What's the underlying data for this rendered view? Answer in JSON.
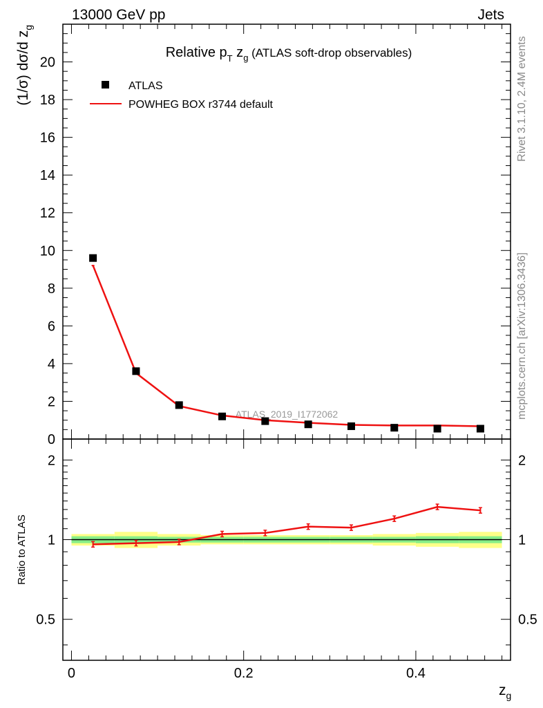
{
  "header": {
    "left": "13000 GeV pp",
    "right": "Jets"
  },
  "side_text": {
    "rivet": "Rivet 3.1.10,  2.4M events",
    "mcplots": "mcplots.cern.ch [arXiv:1306.3436]"
  },
  "watermark": "ATLAS_2019_I1772062",
  "colors": {
    "data": "#000000",
    "mc": "#ee1111",
    "band_inner": "#88ee88",
    "band_outer": "#ffff88",
    "watermark": "#999999",
    "side_text": "#888888"
  },
  "chart_data": {
    "type": "scatter",
    "title": {
      "main": "Relative p",
      "sub_T": "T",
      "mid": " z",
      "sub_g": "g",
      "rest": " (ATLAS soft-drop observables)"
    },
    "ylabel": {
      "main": "(1/σ) dσ/d z",
      "sub": "g"
    },
    "xlabel": {
      "main": "z",
      "sub": "g"
    },
    "ratio_ylabel": "Ratio to ATLAS",
    "xlim": [
      -0.01,
      0.51
    ],
    "ylim": [
      0,
      22
    ],
    "ratio_ylim": [
      0.35,
      2.4
    ],
    "x_ticks": [
      "0",
      "0.2",
      "0.4"
    ],
    "x_tick_values": [
      0,
      0.2,
      0.4
    ],
    "y_ticks": [
      "0",
      "2",
      "4",
      "6",
      "8",
      "10",
      "12",
      "14",
      "16",
      "18",
      "20"
    ],
    "y_tick_values": [
      0,
      2,
      4,
      6,
      8,
      10,
      12,
      14,
      16,
      18,
      20
    ],
    "ratio_ticks": [
      "0.5",
      "1",
      "2"
    ],
    "ratio_tick_values": [
      0.5,
      1,
      2
    ],
    "bins": [
      0,
      0.05,
      0.1,
      0.15,
      0.2,
      0.25,
      0.3,
      0.35,
      0.4,
      0.45,
      0.5
    ],
    "x": [
      0.025,
      0.075,
      0.125,
      0.175,
      0.225,
      0.275,
      0.325,
      0.375,
      0.425,
      0.475
    ],
    "legend": [
      "ATLAS",
      "POWHEG BOX r3744 default"
    ],
    "series": [
      {
        "name": "ATLAS",
        "values": [
          9.6,
          3.6,
          1.8,
          1.2,
          0.95,
          0.78,
          0.68,
          0.6,
          0.55,
          0.55
        ]
      },
      {
        "name": "POWHEG BOX r3744 default",
        "values": [
          9.2,
          3.5,
          1.75,
          1.25,
          1.0,
          0.86,
          0.75,
          0.72,
          0.72,
          0.68
        ]
      }
    ],
    "ratio": [
      0.96,
      0.97,
      0.98,
      1.05,
      1.06,
      1.12,
      1.11,
      1.2,
      1.33,
      1.29
    ],
    "band_inner": [
      0.03,
      0.03,
      0.025,
      0.025,
      0.025,
      0.025,
      0.025,
      0.025,
      0.03,
      0.03
    ],
    "band_outer": [
      0.05,
      0.07,
      0.05,
      0.04,
      0.04,
      0.04,
      0.04,
      0.05,
      0.06,
      0.07
    ]
  }
}
